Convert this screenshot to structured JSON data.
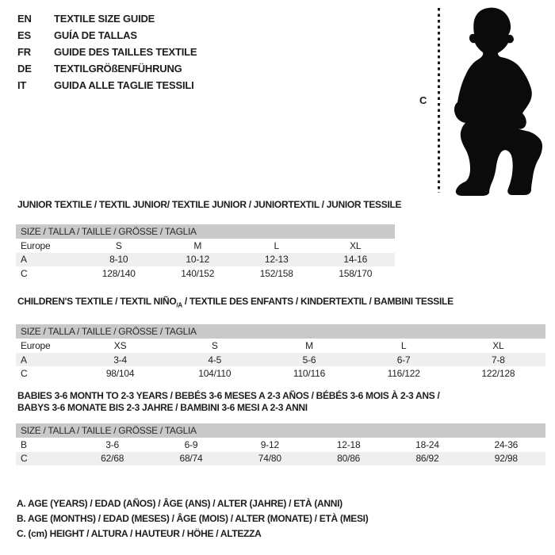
{
  "page": {
    "background_color": "#ffffff",
    "header_bar_color": "#c9c9c9",
    "shaded_row_color": "#efefef",
    "text_color": "#1d1d1d"
  },
  "languages": [
    {
      "code": "EN",
      "label": "TEXTILE SIZE GUIDE"
    },
    {
      "code": "ES",
      "label": "GUÍA DE TALLAS"
    },
    {
      "code": "FR",
      "label": "GUIDE DES TAILLES TEXTILE"
    },
    {
      "code": "DE",
      "label": "TEXTILGRÖßENFÜHRUNG"
    },
    {
      "code": "IT",
      "label": "GUIDA ALLE TAGLIE TESSILI"
    }
  ],
  "figure": {
    "icon": "toddler-silhouette-icon",
    "measurement_label": "C"
  },
  "sections": [
    {
      "title": "JUNIOR TEXTILE / TEXTIL JUNIOR/ TEXTILE JUNIOR / JUNIORTEXTIL / JUNIOR TESSILE",
      "size_header": "SIZE / TALLA / TAILLE / GRÖSSE / TAGLIA",
      "rows": [
        {
          "label": "Europe",
          "shaded": false,
          "values": [
            "S",
            "M",
            "L",
            "XL"
          ]
        },
        {
          "label": "A",
          "shaded": true,
          "values": [
            "8-10",
            "10-12",
            "12-13",
            "14-16"
          ]
        },
        {
          "label": "C",
          "shaded": false,
          "values": [
            "128/140",
            "140/152",
            "152/158",
            "158/170"
          ]
        }
      ]
    },
    {
      "title_pre": "CHILDREN'S TEXTILE / TEXTIL NIÑO",
      "title_sub": "/A",
      "title_post": " / TEXTILE DES ENFANTS / KINDERTEXTIL / BAMBINI TESSILE",
      "size_header": "SIZE / TALLA / TAILLE / GRÖSSE / TAGLIA",
      "rows": [
        {
          "label": "Europe",
          "shaded": false,
          "values": [
            "XS",
            "S",
            "M",
            "L",
            "XL"
          ]
        },
        {
          "label": "A",
          "shaded": true,
          "values": [
            "3-4",
            "4-5",
            "5-6",
            "6-7",
            "7-8"
          ]
        },
        {
          "label": "C",
          "shaded": false,
          "values": [
            "98/104",
            "104/110",
            "110/116",
            "116/122",
            "122/128"
          ]
        }
      ]
    },
    {
      "title_line1": "BABIES 3-6 MONTH TO 2-3 YEARS / BEBÉS 3-6 MESES A 2-3 AÑOS / BÉBÉS 3-6 MOIS À 2-3 ANS /",
      "title_line2": "BABYS 3-6 MONATE BIS 2-3 JAHRE / BAMBINI 3-6 MESI A 2-3 ANNI",
      "size_header": "SIZE / TALLA / TAILLE / GRÖSSE / TAGLIA",
      "rows": [
        {
          "label": "B",
          "shaded": false,
          "values": [
            "3-6",
            "6-9",
            "9-12",
            "12-18",
            "18-24",
            "24-36"
          ]
        },
        {
          "label": "C",
          "shaded": true,
          "values": [
            "62/68",
            "68/74",
            "74/80",
            "80/86",
            "86/92",
            "92/98"
          ]
        }
      ]
    }
  ],
  "notes": [
    "A. AGE (YEARS) / EDAD (AÑOS) / ÂGE (ANS) / ALTER (JAHRE) / ETÀ (ANNI)",
    "B. AGE (MONTHS) / EDAD (MESES) / ÂGE (MOIS) / ALTER (MONATE) / ETÀ (MESI)",
    "C. (cm) HEIGHT / ALTURA / HAUTEUR / HÖHE / ALTEZZA"
  ]
}
